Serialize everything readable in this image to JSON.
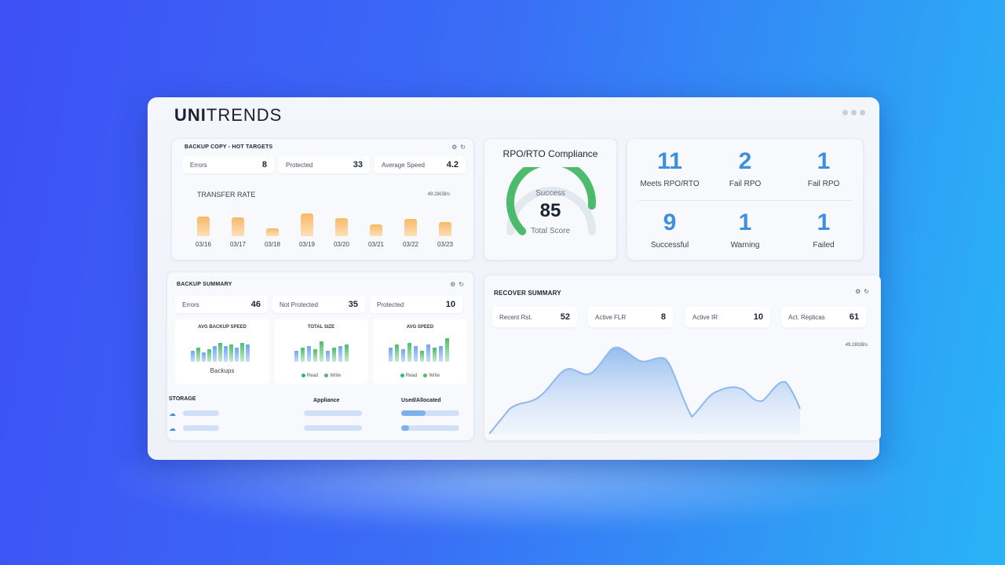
{
  "brand": {
    "uni": "UNI",
    "trends": "TRENDS"
  },
  "backup_copy": {
    "title": "BACKUP COPY - HOT TARGETS",
    "stats": [
      {
        "label": "Errors",
        "value": "8"
      },
      {
        "label": "Protected",
        "value": "33"
      },
      {
        "label": "Average Speed",
        "value": "4.2"
      }
    ],
    "transfer_title": "TRANSFER RATE",
    "transfer_rate": "49.28GB/s",
    "dates": [
      "03/16",
      "03/17",
      "03/18",
      "03/19",
      "03/20",
      "03/21",
      "03/22",
      "03/23"
    ],
    "bar_levels": [
      0.62,
      0.6,
      0.24,
      0.72,
      0.58,
      0.38,
      0.55,
      0.44
    ],
    "bar_color": "#f9b867"
  },
  "compliance": {
    "title": "RPO/RTO Compliance",
    "status": "Success",
    "score": "85",
    "score_label": "Total Score",
    "gauge_fraction": 0.85,
    "gauge_color": "#4cbc6c"
  },
  "rpo_stats": [
    {
      "value": "11",
      "label": "Meets RPO/RTO"
    },
    {
      "value": "2",
      "label": "Fail RPO"
    },
    {
      "value": "1",
      "label": "Fail RPO"
    },
    {
      "value": "9",
      "label": "Successful"
    },
    {
      "value": "1",
      "label": "Warning"
    },
    {
      "value": "1",
      "label": "Failed"
    }
  ],
  "backup_summary": {
    "title": "BACKUP SUMMARY",
    "stats": [
      {
        "label": "Errors",
        "value": "46"
      },
      {
        "label": "Not Protected",
        "value": "35"
      },
      {
        "label": "Protected",
        "value": "10"
      }
    ],
    "minis": [
      {
        "title": "AVG BACKUP SPEED",
        "caption": "Backups"
      },
      {
        "title": "TOTAL SIZE",
        "legend": [
          "Read",
          "Write"
        ]
      },
      {
        "title": "AVG SPEED",
        "legend": [
          "Read",
          "Write"
        ]
      }
    ],
    "storage_label": "STORAGE",
    "appliance_label": "Appliance",
    "used_label": "Used/Allocated",
    "usage_levels": [
      0.42,
      0.14
    ]
  },
  "recover_summary": {
    "title": "RECOVER SUMMARY",
    "stats": [
      {
        "label": "Recent Rst.",
        "value": "52"
      },
      {
        "label": "Active FLR",
        "value": "8"
      },
      {
        "label": "Active IR",
        "value": "10"
      },
      {
        "label": "Act. Replicas",
        "value": "61"
      }
    ],
    "rate": "49.28GB/s",
    "area_color": "#8fb8ee"
  },
  "icons": [
    "gear-icon",
    "refresh-icon",
    "cloud-upload-icon",
    "window-dots-icon"
  ]
}
